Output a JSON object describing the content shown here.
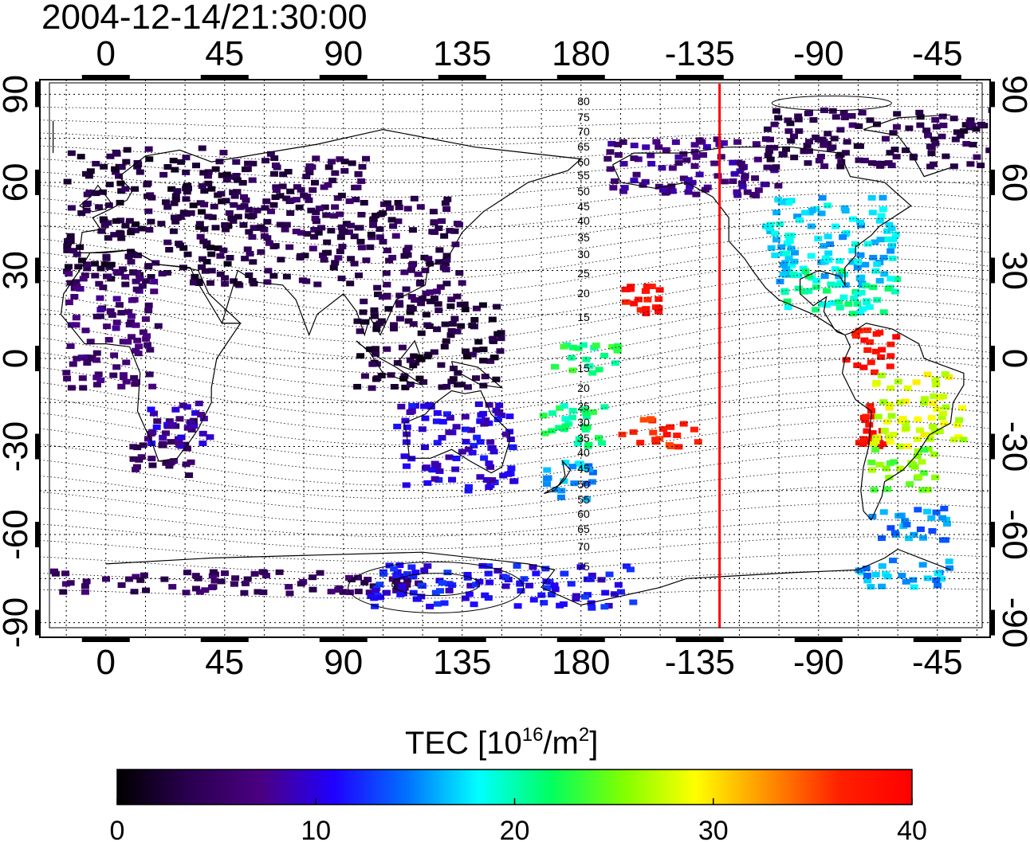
{
  "timestamp": "2004-12-14/21:30:00",
  "map": {
    "top_lon_labels": [
      "0",
      "45",
      "90",
      "135",
      "180",
      "-135",
      "-90",
      "-45"
    ],
    "bottom_lon_labels": [
      "0",
      "45",
      "90",
      "135",
      "180",
      "-135",
      "-90",
      "-45"
    ],
    "left_lat_labels": [
      "90",
      "60",
      "30",
      "0",
      "-30",
      "-60",
      "-90"
    ],
    "right_lat_labels": [
      "90",
      "60",
      "30",
      "0",
      "-30",
      "-60",
      "-90"
    ],
    "lon_ticks": [
      0,
      45,
      90,
      135,
      180,
      225,
      270,
      315
    ],
    "lat_ticks": [
      90,
      60,
      30,
      0,
      -30,
      -60,
      -90
    ],
    "lon_range": [
      -25,
      335
    ],
    "lat_range": [
      -95,
      95
    ],
    "terminator_lon": -127.5,
    "terminator_color": "#ff0000",
    "mlat_labels_north": [
      "80",
      "75",
      "70",
      "65",
      "60",
      "55",
      "50",
      "45",
      "40",
      "35",
      "30",
      "25",
      "20",
      "15"
    ],
    "mlat_labels_south": [
      "15",
      "20",
      "25",
      "30",
      "35",
      "40",
      "45",
      "50",
      "55",
      "60",
      "65",
      "70",
      "75"
    ]
  },
  "colorbar": {
    "title_prefix": "TEC  [10",
    "title_exp": "16",
    "title_mid": "/m",
    "title_exp2": "2",
    "title_suffix": "]",
    "tick_labels": [
      "0",
      "10",
      "20",
      "30",
      "40"
    ],
    "tick_values": [
      0,
      10,
      20,
      30,
      40
    ],
    "range": [
      0,
      40
    ],
    "colors": [
      "#000000",
      "#2a0050",
      "#4b0082",
      "#2000ff",
      "#0070ff",
      "#00ffff",
      "#00ff60",
      "#80ff00",
      "#ffff00",
      "#ff9000",
      "#ff2000",
      "#ff0000"
    ]
  },
  "tec_regions": [
    {
      "lon": [
        -15,
        50
      ],
      "lat": [
        25,
        72
      ],
      "tec": 3
    },
    {
      "lon": [
        50,
        100
      ],
      "lat": [
        25,
        70
      ],
      "tec": 4
    },
    {
      "lon": [
        100,
        135
      ],
      "lat": [
        20,
        55
      ],
      "tec": 4
    },
    {
      "lon": [
        95,
        150
      ],
      "lat": [
        -10,
        20
      ],
      "tec": 3
    },
    {
      "lon": [
        10,
        35
      ],
      "lat": [
        -40,
        -20
      ],
      "tec": 5
    },
    {
      "lon": [
        15,
        40
      ],
      "lat": [
        -30,
        -15
      ],
      "tec": 9
    },
    {
      "lon": [
        -15,
        20
      ],
      "lat": [
        -10,
        30
      ],
      "tec": 6
    },
    {
      "lon": [
        110,
        155
      ],
      "lat": [
        -45,
        -15
      ],
      "tec": 10
    },
    {
      "lon": [
        165,
        185
      ],
      "lat": [
        -50,
        -35
      ],
      "tec": 16
    },
    {
      "lon": [
        165,
        190
      ],
      "lat": [
        -30,
        -15
      ],
      "tec": 21
    },
    {
      "lon": [
        170,
        195
      ],
      "lat": [
        -5,
        5
      ],
      "tec": 22
    },
    {
      "lon": [
        195,
        210
      ],
      "lat": [
        15,
        25
      ],
      "tec": 38
    },
    {
      "lon": [
        195,
        225
      ],
      "lat": [
        -30,
        -20
      ],
      "tec": 37
    },
    {
      "lon": [
        190,
        255
      ],
      "lat": [
        55,
        75
      ],
      "tec": 7
    },
    {
      "lon": [
        250,
        300
      ],
      "lat": [
        25,
        55
      ],
      "tec": 17
    },
    {
      "lon": [
        255,
        300
      ],
      "lat": [
        15,
        30
      ],
      "tec": 20
    },
    {
      "lon": [
        280,
        300
      ],
      "lat": [
        -5,
        10
      ],
      "tec": 38
    },
    {
      "lon": [
        285,
        295
      ],
      "lat": [
        -30,
        -15
      ],
      "tec": 39
    },
    {
      "lon": [
        290,
        325
      ],
      "lat": [
        -30,
        -5
      ],
      "tec": 28
    },
    {
      "lon": [
        290,
        315
      ],
      "lat": [
        -45,
        -30
      ],
      "tec": 25
    },
    {
      "lon": [
        290,
        320
      ],
      "lat": [
        -62,
        -50
      ],
      "tec": 15
    },
    {
      "lon": [
        250,
        340
      ],
      "lat": [
        65,
        85
      ],
      "tec": 4
    },
    {
      "lon": [
        -20,
        120
      ],
      "lat": [
        -80,
        -72
      ],
      "tec": 5
    },
    {
      "lon": [
        100,
        200
      ],
      "lat": [
        -85,
        -70
      ],
      "tec": 11
    },
    {
      "lon": [
        285,
        320
      ],
      "lat": [
        -78,
        -68
      ],
      "tec": 16
    }
  ]
}
